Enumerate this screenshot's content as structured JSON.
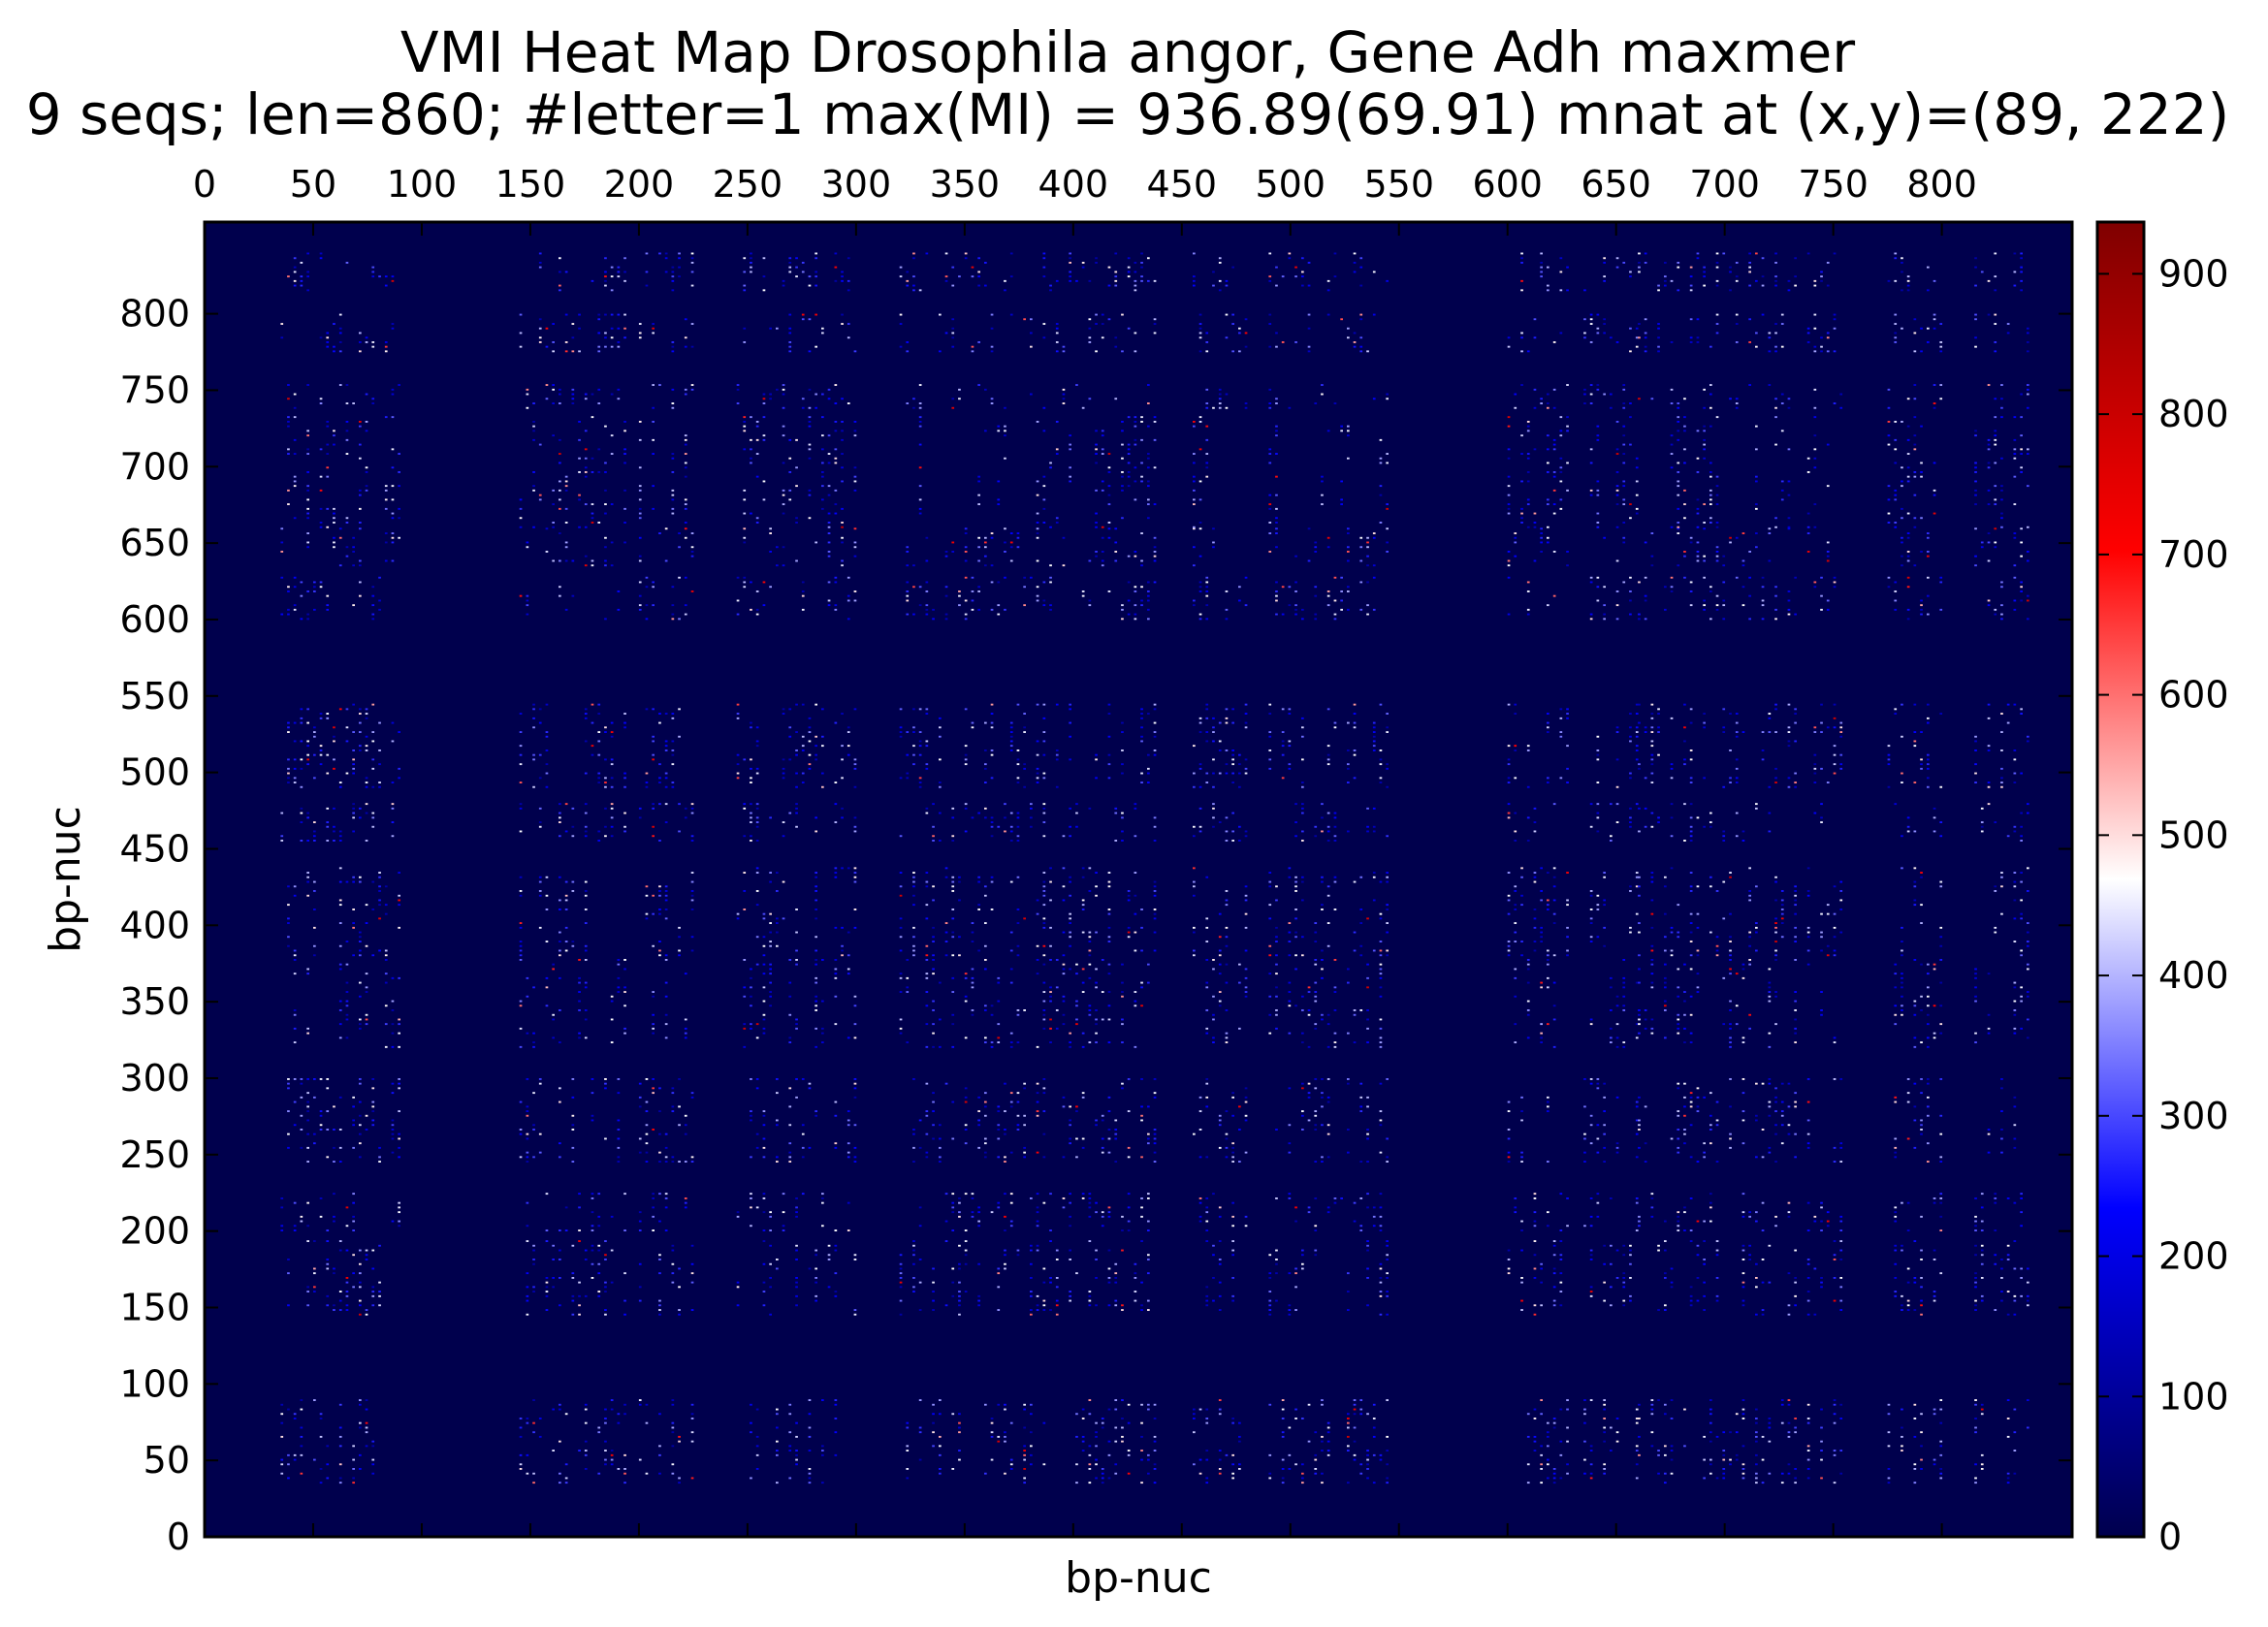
{
  "chart_data": {
    "type": "heatmap",
    "title": "VMI Heat Map Drosophila angor, Gene Adh maxmer",
    "subtitle": "9 seqs; len=860; #letter=1 max(MI) = 936.89(69.91) mnat at (x,y)=(89, 222)",
    "xlabel": "bp-nuc",
    "ylabel": "bp-nuc",
    "x_ticks": [
      0,
      50,
      100,
      150,
      200,
      250,
      300,
      350,
      400,
      450,
      500,
      550,
      600,
      650,
      700,
      750,
      800
    ],
    "y_ticks": [
      0,
      50,
      100,
      150,
      200,
      250,
      300,
      350,
      400,
      450,
      500,
      550,
      600,
      650,
      700,
      750,
      800
    ],
    "xlim": [
      0,
      860
    ],
    "ylim": [
      0,
      860
    ],
    "x_axis_position": "top",
    "colorbar": {
      "ticks": [
        0,
        100,
        200,
        300,
        400,
        500,
        600,
        700,
        800,
        900
      ],
      "range": [
        0,
        936.89
      ],
      "colormap_stops": [
        {
          "v": 0,
          "color": "#00004d"
        },
        {
          "v": 0.25,
          "color": "#0000ff"
        },
        {
          "v": 0.5,
          "color": "#ffffff"
        },
        {
          "v": 0.75,
          "color": "#ff0000"
        },
        {
          "v": 1.0,
          "color": "#7f0000"
        }
      ]
    },
    "max_value": 936.89,
    "max_location": {
      "x": 89,
      "y": 222
    },
    "active_bands": [
      [
        35,
        90
      ],
      [
        145,
        195
      ],
      [
        200,
        225
      ],
      [
        245,
        300
      ],
      [
        320,
        380
      ],
      [
        380,
        440
      ],
      [
        455,
        480
      ],
      [
        490,
        545
      ],
      [
        600,
        630
      ],
      [
        635,
        660
      ],
      [
        660,
        735
      ],
      [
        738,
        755
      ],
      [
        775,
        800
      ],
      [
        815,
        840
      ]
    ],
    "background_color": "#00004d"
  }
}
